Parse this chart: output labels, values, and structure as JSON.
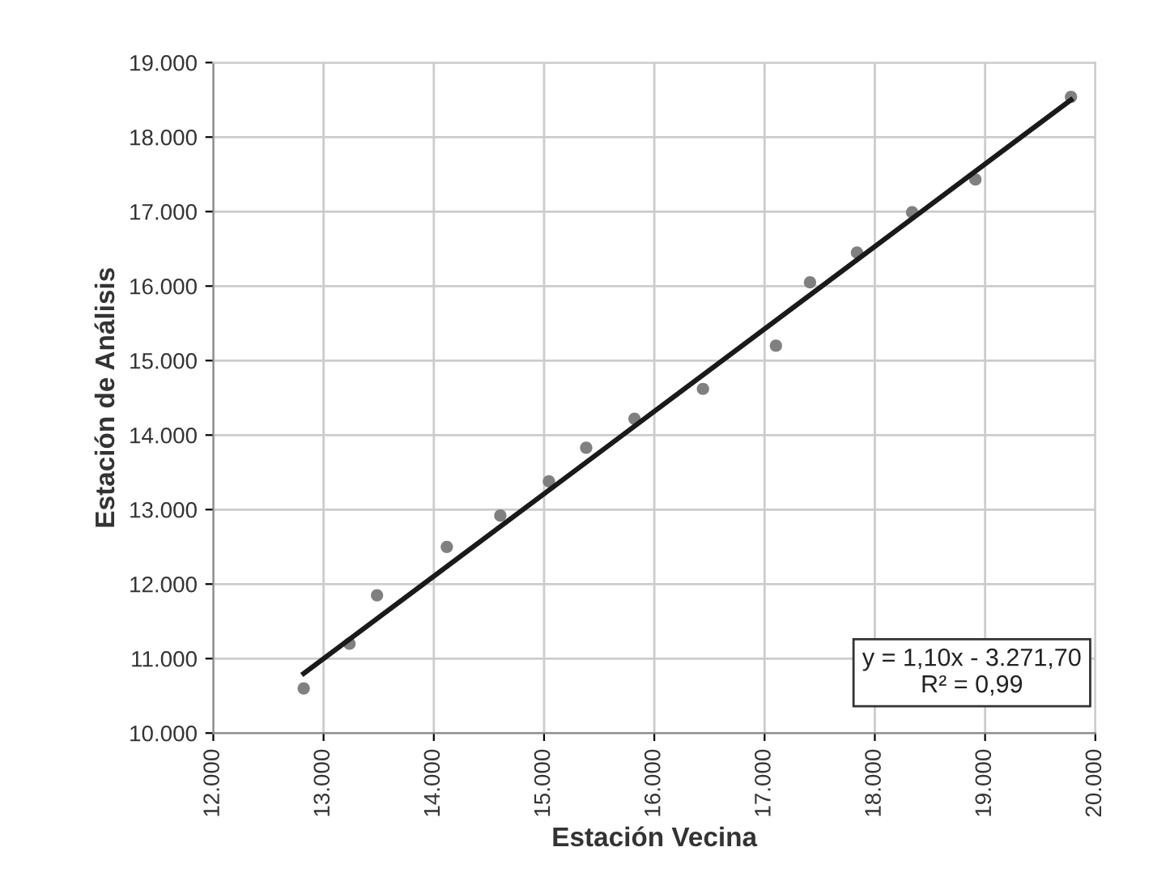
{
  "chart_data": {
    "type": "scatter",
    "xlabel": "Estación Vecina",
    "ylabel": "Estación de Análisis",
    "xlim": [
      12000,
      20000
    ],
    "xticks": [
      {
        "value": 12000,
        "label": "12.000"
      },
      {
        "value": 13000,
        "label": "13.000"
      },
      {
        "value": 14000,
        "label": "14.000"
      },
      {
        "value": 15000,
        "label": "15.000"
      },
      {
        "value": 16000,
        "label": "16.000"
      },
      {
        "value": 17000,
        "label": "17.000"
      },
      {
        "value": 18000,
        "label": "18.000"
      },
      {
        "value": 19000,
        "label": "19.000"
      },
      {
        "value": 20000,
        "label": "20.000"
      }
    ],
    "ylim": [
      10000,
      19000
    ],
    "yticks": [
      {
        "value": 10000,
        "label": "10.000"
      },
      {
        "value": 11000,
        "label": "11.000"
      },
      {
        "value": 12000,
        "label": "12.000"
      },
      {
        "value": 13000,
        "label": "13.000"
      },
      {
        "value": 14000,
        "label": "14.000"
      },
      {
        "value": 15000,
        "label": "15.000"
      },
      {
        "value": 16000,
        "label": "16.000"
      },
      {
        "value": 17000,
        "label": "17.000"
      },
      {
        "value": 18000,
        "label": "18.000"
      },
      {
        "value": 19000,
        "label": "19.000"
      }
    ],
    "grid": true,
    "series": [
      {
        "color": "#808080",
        "marker": "circle",
        "x": [
          12820,
          13235,
          13485,
          14118,
          14603,
          15044,
          15382,
          15820,
          16441,
          17103,
          17412,
          17838,
          18338,
          18912,
          19779
        ],
        "values": [
          10600,
          11200,
          11850,
          12500,
          12920,
          13380,
          13830,
          14220,
          14620,
          15200,
          16050,
          16450,
          16990,
          17430,
          18540
        ]
      },
      {
        "type": "line",
        "color": "#1a1a1a",
        "line_style": "solid",
        "x": [
          12820,
          19779
        ],
        "values": [
          10800,
          18500
        ]
      }
    ],
    "annotations": [
      "y = 1,10x - 3.271,70",
      "R² = 0,99"
    ]
  }
}
